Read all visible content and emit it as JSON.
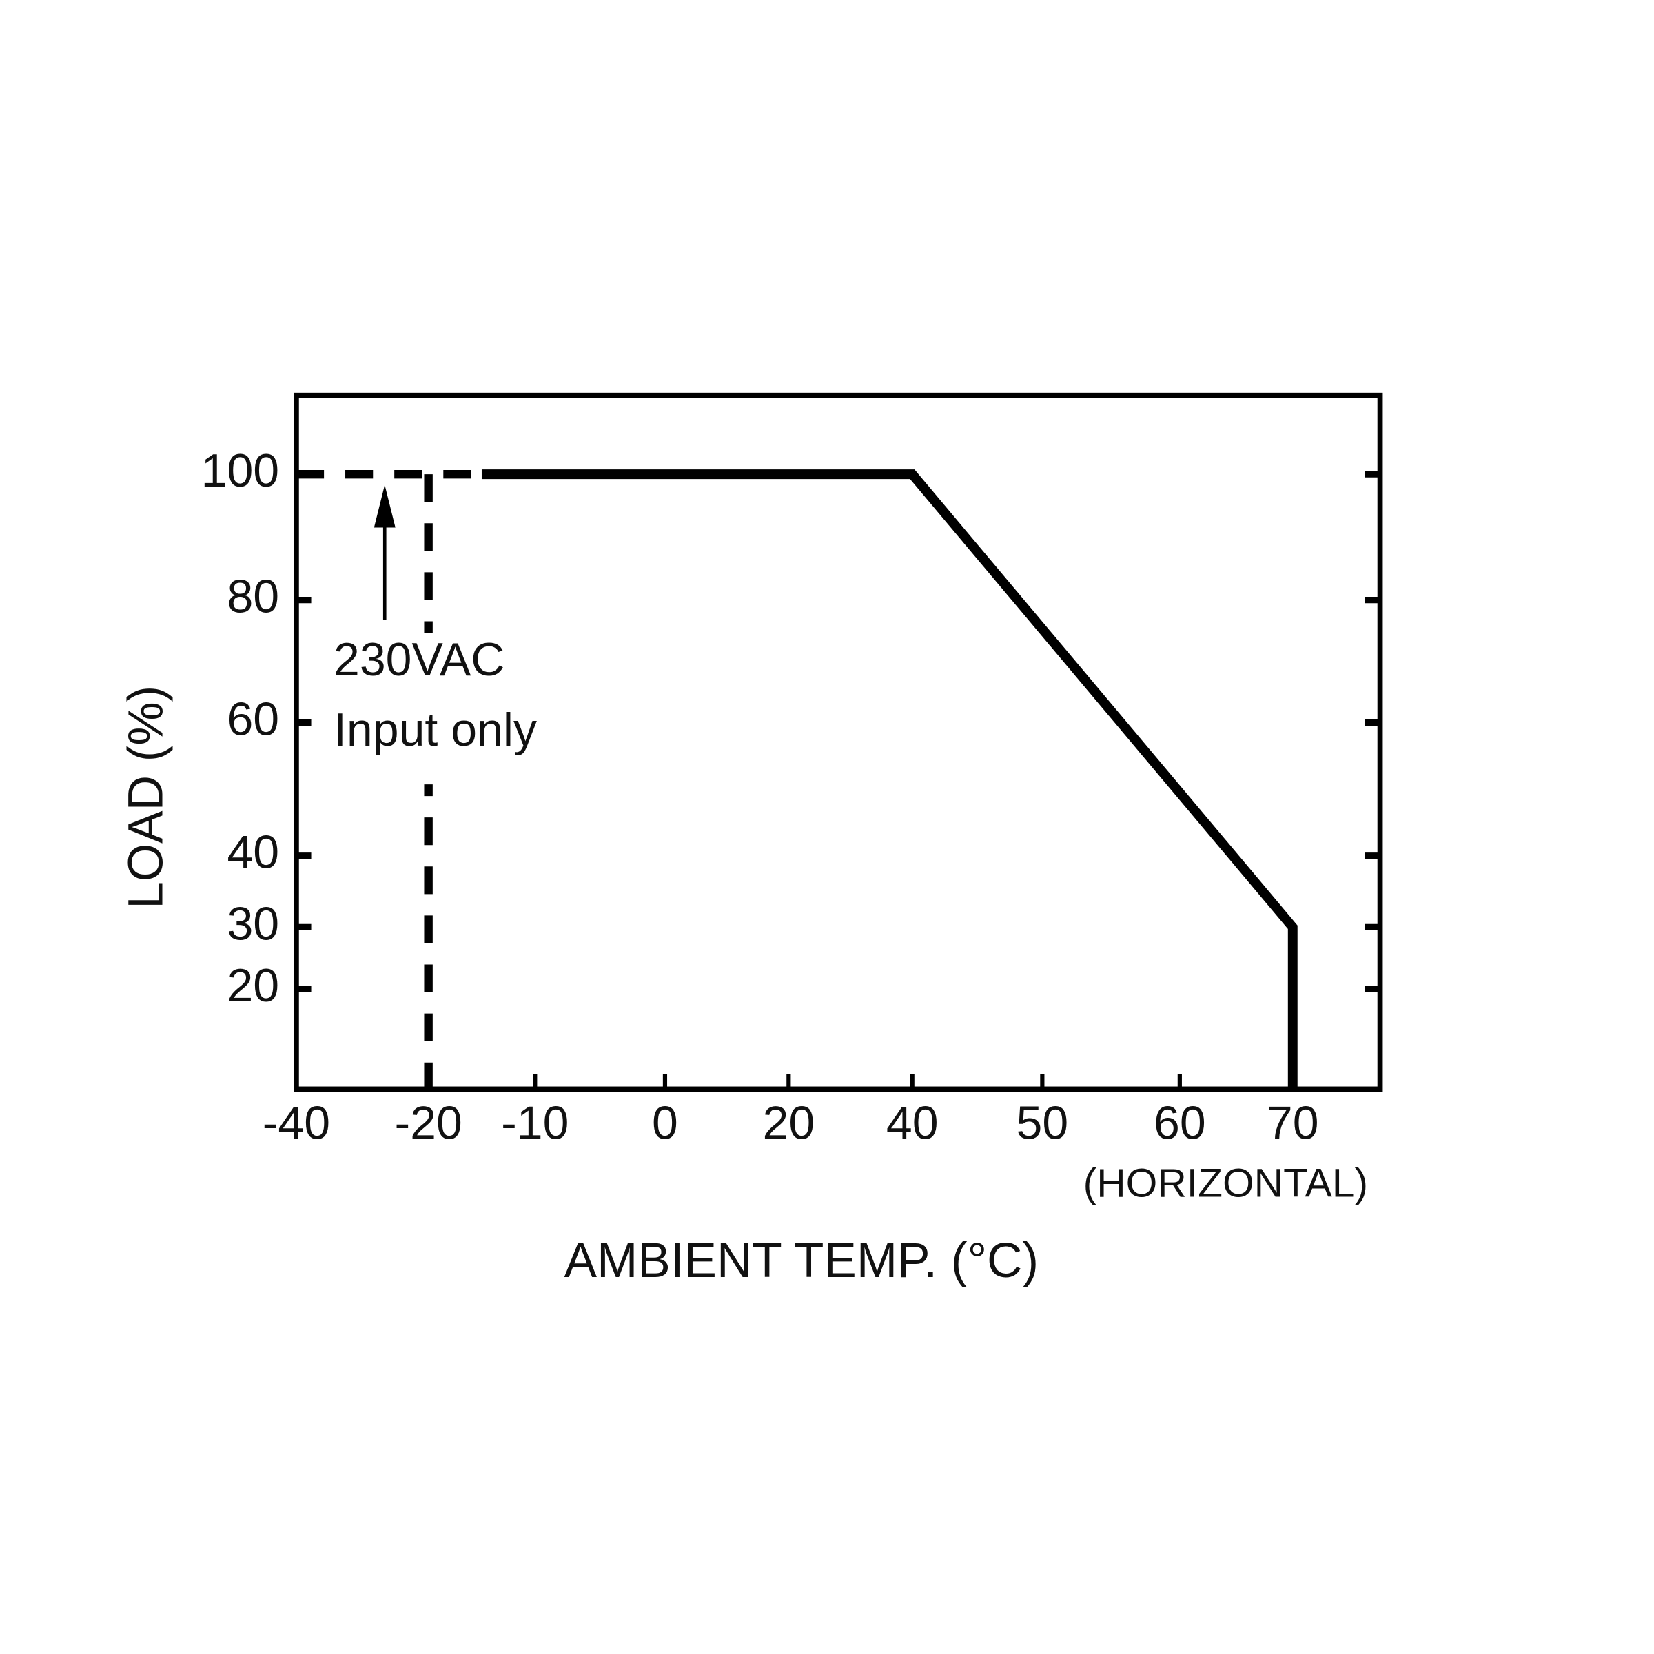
{
  "chart_data": {
    "type": "line",
    "x_label": "AMBIENT TEMP. (°C)",
    "x_note": "(HORIZONTAL)",
    "y_label": "LOAD (%)",
    "annotation": [
      "230VAC",
      "Input only"
    ],
    "xlim": [
      -40,
      78
    ],
    "ylim": [
      4,
      113
    ],
    "xticks": [
      -40,
      -20,
      -10,
      0,
      20,
      40,
      50,
      60,
      70
    ],
    "yticks": [
      20,
      30,
      40,
      60,
      80,
      100
    ],
    "series": [
      {
        "color": "#000000",
        "dashed": false,
        "x": [
          -15,
          40,
          70,
          70
        ],
        "values": [
          100,
          100,
          30,
          4
        ]
      },
      {
        "color": "#000000",
        "dashed": true,
        "x": [
          -40,
          -15
        ],
        "values": [
          100,
          100
        ]
      },
      {
        "color": "#000000",
        "dashed": true,
        "x": [
          -20,
          -20
        ],
        "values": [
          100,
          4
        ]
      }
    ]
  }
}
